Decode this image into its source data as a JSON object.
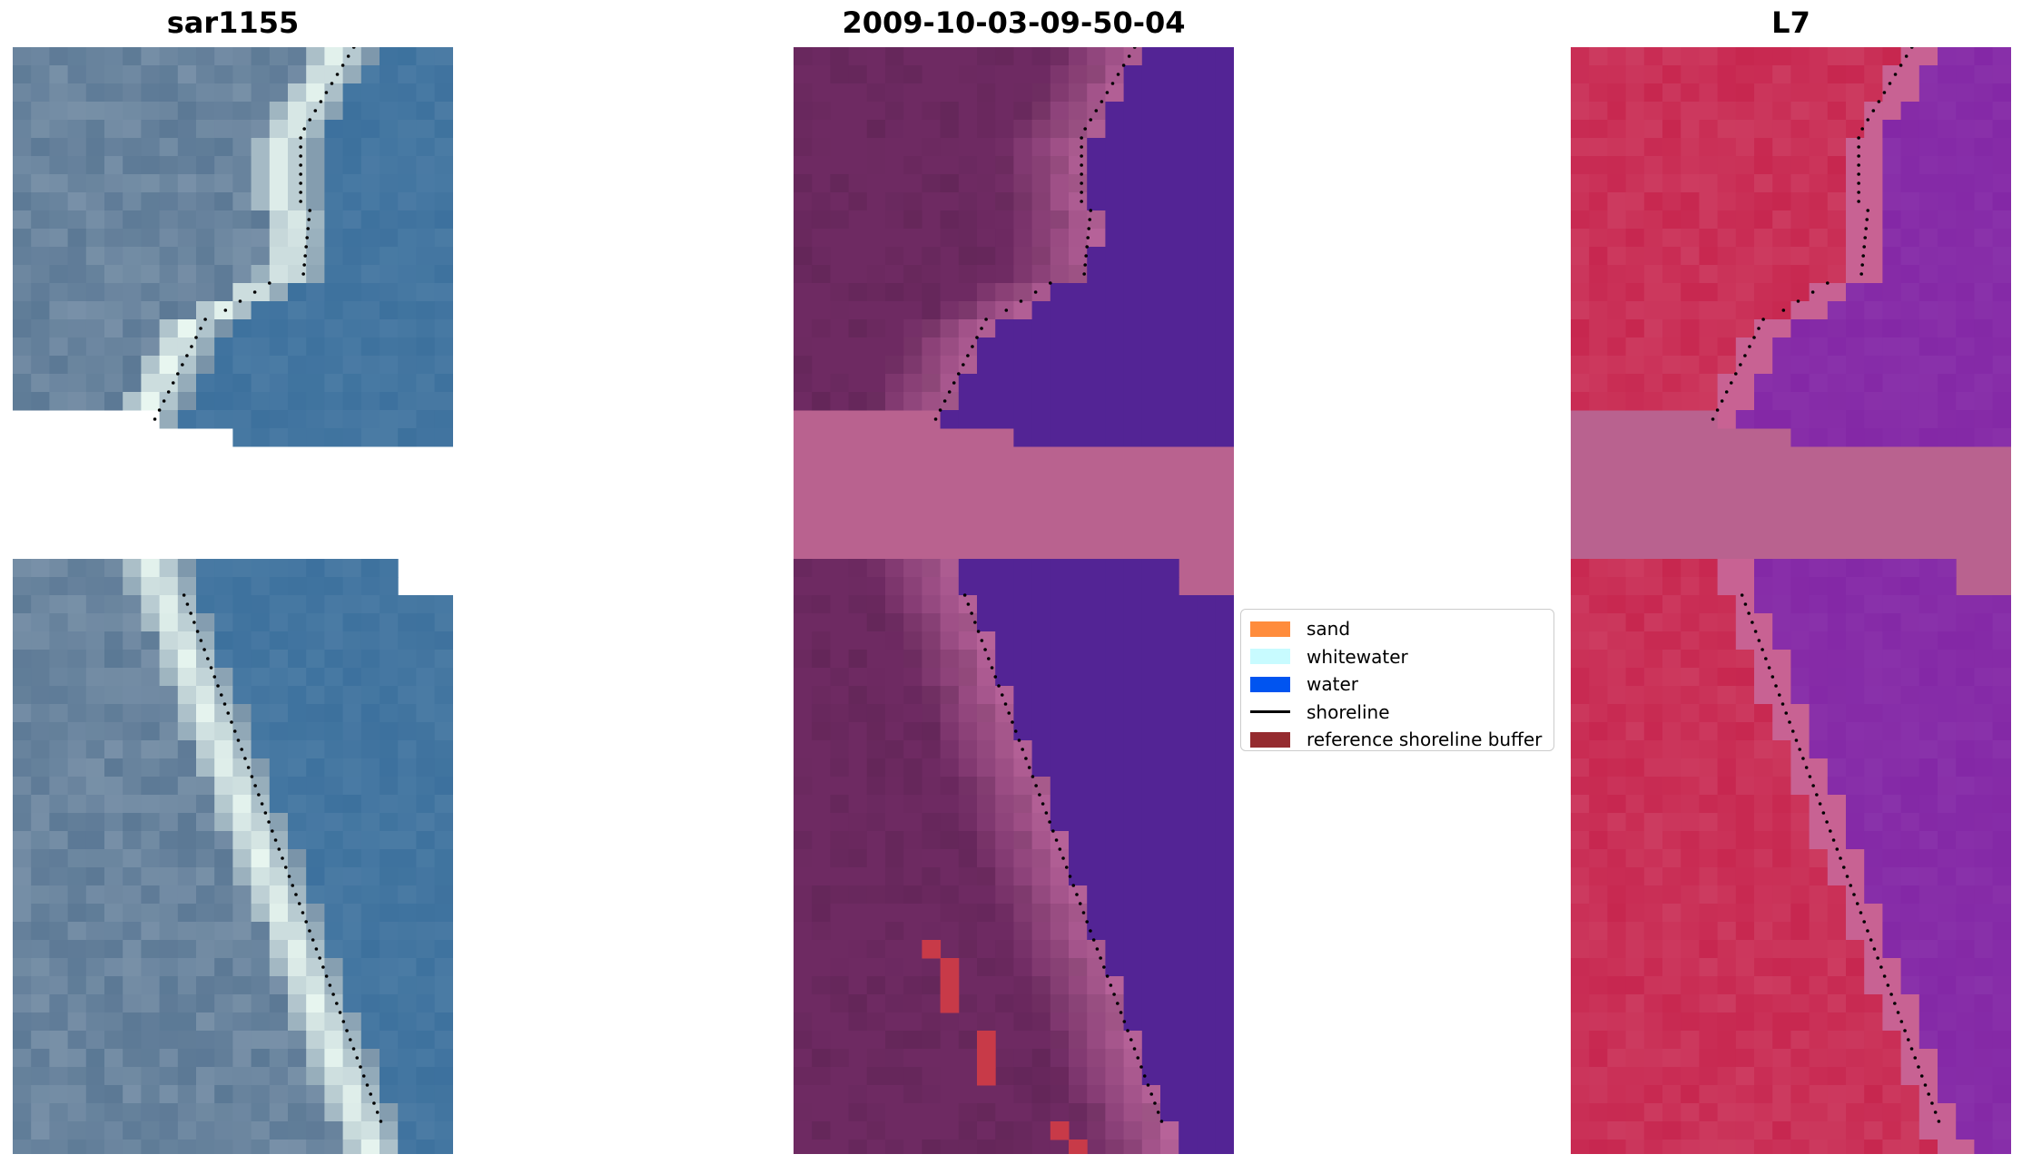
{
  "panels": {
    "rgb": {
      "title": "sar1155"
    },
    "classified": {
      "title": "2009-10-03-09-50-04"
    },
    "index": {
      "title": "L7"
    }
  },
  "legend": {
    "items": [
      {
        "label": "sand",
        "color": "#ff8c3c",
        "kind": "patch"
      },
      {
        "label": "whitewater",
        "color": "#c8fbff",
        "kind": "patch"
      },
      {
        "label": "water",
        "color": "#0054f0",
        "kind": "patch"
      },
      {
        "label": "shoreline",
        "color": "#000000",
        "kind": "line"
      },
      {
        "label": "reference shoreline buffer",
        "color": "#952b2f",
        "kind": "patch"
      }
    ]
  },
  "colors": {
    "rgb_water": "#3a6f9c",
    "rgb_land": "#5d7a96",
    "rgb_whitewater": "#e8f6f0",
    "class_land": "#6e2a62",
    "class_water": "#532495",
    "class_nodata": "#b9628f",
    "class_buffer": "#c83a48",
    "index_land": "#c41a45",
    "index_water": "#8428a6",
    "index_nodata": "#b9628f",
    "shoreline": "#000000"
  }
}
